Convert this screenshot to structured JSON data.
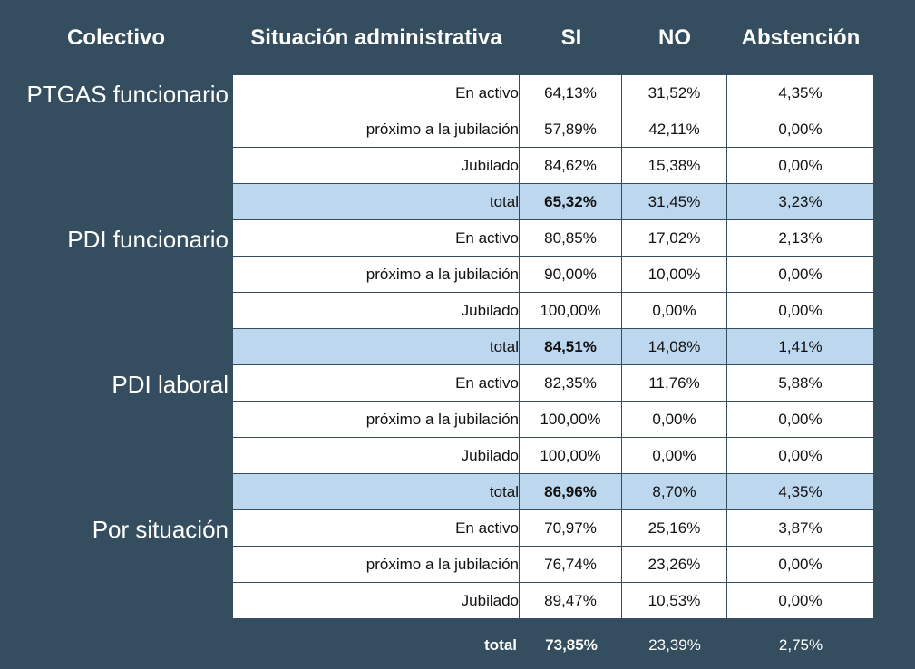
{
  "chart_data": {
    "type": "table",
    "headers": {
      "colectivo": "Colectivo",
      "situacion": "Situación administrativa",
      "si": "SI",
      "no": "NO",
      "abstencion": "Abstención"
    },
    "groups": [
      {
        "label": "PTGAS funcionario",
        "rows": [
          {
            "situacion": "En activo",
            "si": "64,13%",
            "no": "31,52%",
            "abstencion": "4,35%"
          },
          {
            "situacion": "próximo a la jubilación",
            "si": "57,89%",
            "no": "42,11%",
            "abstencion": "0,00%"
          },
          {
            "situacion": "Jubilado",
            "si": "84,62%",
            "no": "15,38%",
            "abstencion": "0,00%"
          },
          {
            "situacion": "total",
            "si": "65,32%",
            "no": "31,45%",
            "abstencion": "3,23%"
          }
        ]
      },
      {
        "label": "PDI funcionario",
        "rows": [
          {
            "situacion": "En activo",
            "si": "80,85%",
            "no": "17,02%",
            "abstencion": "2,13%"
          },
          {
            "situacion": "próximo a la jubilación",
            "si": "90,00%",
            "no": "10,00%",
            "abstencion": "0,00%"
          },
          {
            "situacion": "Jubilado",
            "si": "100,00%",
            "no": "0,00%",
            "abstencion": "0,00%"
          },
          {
            "situacion": "total",
            "si": "84,51%",
            "no": "14,08%",
            "abstencion": "1,41%"
          }
        ]
      },
      {
        "label": "PDI laboral",
        "rows": [
          {
            "situacion": "En activo",
            "si": "82,35%",
            "no": "11,76%",
            "abstencion": "5,88%"
          },
          {
            "situacion": "próximo a la jubilación",
            "si": "100,00%",
            "no": "0,00%",
            "abstencion": "0,00%"
          },
          {
            "situacion": "Jubilado",
            "si": "100,00%",
            "no": "0,00%",
            "abstencion": "0,00%"
          },
          {
            "situacion": "total",
            "si": "86,96%",
            "no": "8,70%",
            "abstencion": "4,35%"
          }
        ]
      },
      {
        "label": "Por situación",
        "rows": [
          {
            "situacion": "En activo",
            "si": "70,97%",
            "no": "25,16%",
            "abstencion": "3,87%"
          },
          {
            "situacion": "próximo a la jubilación",
            "si": "76,74%",
            "no": "23,26%",
            "abstencion": "0,00%"
          },
          {
            "situacion": "Jubilado",
            "si": "89,47%",
            "no": "10,53%",
            "abstencion": "0,00%"
          }
        ]
      }
    ],
    "grand_total": {
      "situacion": "total",
      "si": "73,85%",
      "no": "23,39%",
      "abstencion": "2,75%"
    },
    "colors": {
      "background": "#344e5f",
      "cell": "#ffffff",
      "total_row": "#bdd7ee"
    }
  }
}
